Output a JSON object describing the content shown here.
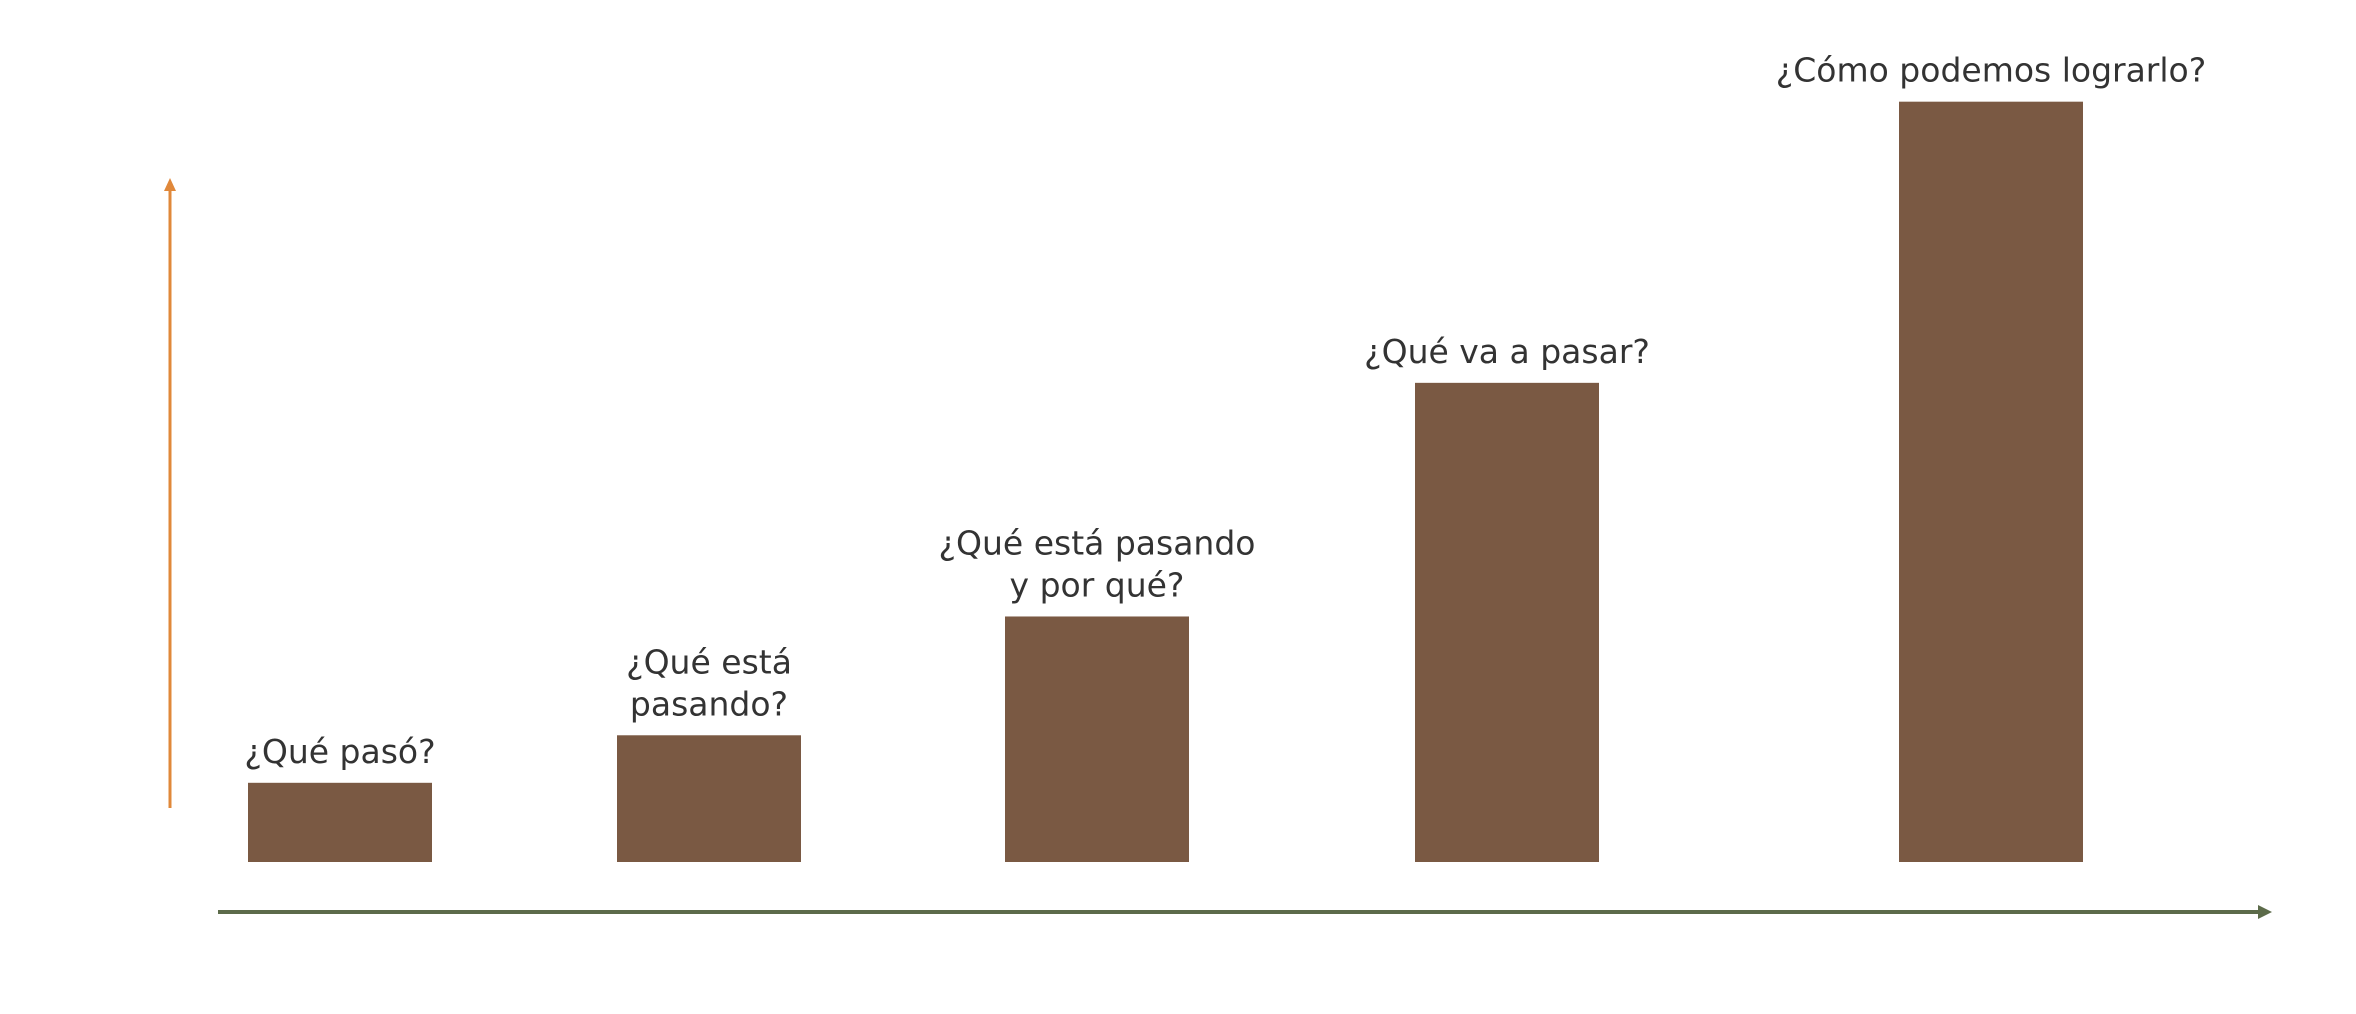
{
  "chart_data": {
    "type": "bar",
    "title": "",
    "xlabel": "",
    "ylabel": "",
    "categories": [
      "¿Qué pasó?",
      "¿Qué está pasando?",
      "¿Qué está pasando y por qué?",
      "¿Qué va a pasar?",
      "¿Cómo podemos lograrlo?"
    ],
    "label_lines": [
      [
        "¿Qué pasó?"
      ],
      [
        "¿Qué está",
        "pasando?"
      ],
      [
        "¿Qué está pasando",
        "y por qué?"
      ],
      [
        "¿Qué va a pasar?"
      ],
      [
        "¿Cómo podemos lograrlo?"
      ]
    ],
    "values": [
      1,
      1.6,
      3.1,
      6.05,
      9.6
    ],
    "ylim": [
      0,
      10
    ],
    "grid": false,
    "ticks_shown": false,
    "colors": {
      "bar": "#7a5943",
      "y_axis": "#e0883a",
      "x_axis": "#5c6b4a",
      "label": "#333333"
    }
  }
}
